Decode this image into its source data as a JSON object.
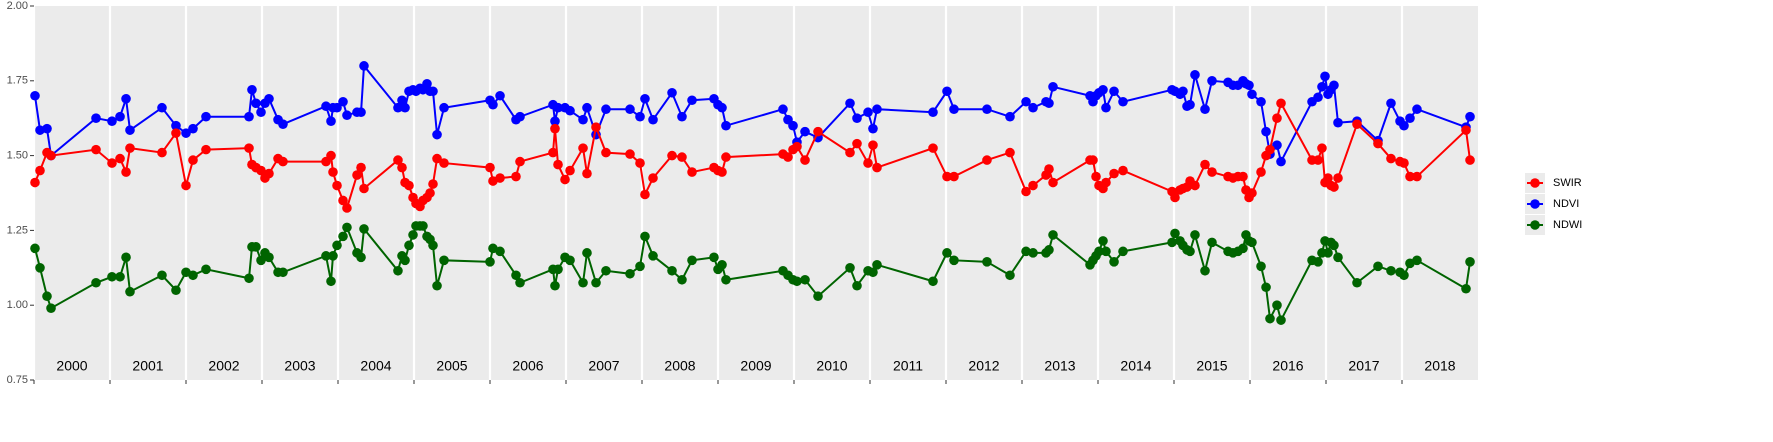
{
  "chart_data": {
    "type": "line",
    "x": [
      2000.013,
      2000.079,
      2000.171,
      2000.224,
      2000.816,
      2001.026,
      2001.132,
      2001.211,
      2001.263,
      2001.684,
      2001.868,
      2002.0,
      2002.092,
      2002.263,
      2002.829,
      2002.868,
      2002.921,
      2002.987,
      2003.039,
      2003.092,
      2003.211,
      2003.276,
      2003.842,
      2003.908,
      2003.934,
      2003.987,
      2004.066,
      2004.118,
      2004.25,
      2004.303,
      2004.342,
      2004.789,
      2004.842,
      2004.882,
      2004.934,
      2004.987,
      2005.026,
      2005.079,
      2005.118,
      2005.171,
      2005.211,
      2005.25,
      2005.303,
      2005.395,
      2006.0,
      2006.039,
      2006.132,
      2006.342,
      2006.395,
      2006.829,
      2006.855,
      2006.895,
      2006.987,
      2007.053,
      2007.224,
      2007.276,
      2007.395,
      2007.526,
      2007.842,
      2007.974,
      2008.039,
      2008.145,
      2008.395,
      2008.526,
      2008.658,
      2008.947,
      2009.0,
      2009.053,
      2009.105,
      2009.855,
      2009.921,
      2009.987,
      2010.039,
      2010.145,
      2010.316,
      2010.737,
      2010.829,
      2010.974,
      2011.039,
      2011.092,
      2011.829,
      2012.013,
      2012.105,
      2012.539,
      2012.842,
      2013.053,
      2013.145,
      2013.316,
      2013.355,
      2013.408,
      2013.895,
      2013.934,
      2013.974,
      2014.013,
      2014.066,
      2014.105,
      2014.211,
      2014.329,
      2014.974,
      2015.013,
      2015.079,
      2015.118,
      2015.171,
      2015.211,
      2015.276,
      2015.408,
      2015.5,
      2015.711,
      2015.776,
      2015.842,
      2015.908,
      2015.947,
      2015.987,
      2016.026,
      2016.145,
      2016.211,
      2016.263,
      2016.355,
      2016.408,
      2016.816,
      2016.895,
      2016.947,
      2016.987,
      2017.026,
      2017.066,
      2017.105,
      2017.158,
      2017.408,
      2017.684,
      2017.855,
      2017.974,
      2018.026,
      2018.105,
      2018.197,
      2018.842,
      2018.895
    ],
    "series": [
      {
        "name": "SWIR",
        "color": "#ff0000",
        "values": [
          1.41,
          1.45,
          1.51,
          1.5,
          1.52,
          1.475,
          1.49,
          1.445,
          1.525,
          1.51,
          1.575,
          1.4,
          1.485,
          1.52,
          1.525,
          1.47,
          1.46,
          1.45,
          1.425,
          1.44,
          1.49,
          1.48,
          1.48,
          1.5,
          1.445,
          1.4,
          1.35,
          1.325,
          1.435,
          1.46,
          1.39,
          1.485,
          1.46,
          1.41,
          1.4,
          1.36,
          1.34,
          1.33,
          1.35,
          1.36,
          1.375,
          1.405,
          1.49,
          1.475,
          1.46,
          1.415,
          1.425,
          1.43,
          1.48,
          1.51,
          1.59,
          1.47,
          1.42,
          1.45,
          1.525,
          1.44,
          1.595,
          1.51,
          1.505,
          1.475,
          1.37,
          1.425,
          1.5,
          1.495,
          1.445,
          1.46,
          1.45,
          1.445,
          1.495,
          1.505,
          1.495,
          1.52,
          1.53,
          1.485,
          1.58,
          1.51,
          1.54,
          1.475,
          1.535,
          1.46,
          1.525,
          1.43,
          1.43,
          1.485,
          1.51,
          1.38,
          1.4,
          1.435,
          1.455,
          1.41,
          1.485,
          1.485,
          1.43,
          1.4,
          1.39,
          1.41,
          1.44,
          1.45,
          1.38,
          1.36,
          1.385,
          1.39,
          1.395,
          1.415,
          1.4,
          1.47,
          1.445,
          1.43,
          1.425,
          1.43,
          1.43,
          1.385,
          1.36,
          1.375,
          1.445,
          1.5,
          1.52,
          1.625,
          1.675,
          1.485,
          1.485,
          1.525,
          1.41,
          1.425,
          1.4,
          1.395,
          1.425,
          1.605,
          1.54,
          1.49,
          1.48,
          1.475,
          1.43,
          1.43,
          1.585,
          1.485
        ]
      },
      {
        "name": "NDVI",
        "color": "#0000ff",
        "values": [
          1.7,
          1.585,
          1.59,
          1.5,
          1.625,
          1.615,
          1.63,
          1.69,
          1.585,
          1.66,
          1.6,
          1.575,
          1.59,
          1.63,
          1.63,
          1.72,
          1.675,
          1.645,
          1.675,
          1.69,
          1.62,
          1.605,
          1.665,
          1.615,
          1.66,
          1.66,
          1.68,
          1.635,
          1.645,
          1.645,
          1.8,
          1.66,
          1.685,
          1.66,
          1.715,
          1.72,
          1.715,
          1.725,
          1.72,
          1.74,
          1.715,
          1.715,
          1.57,
          1.66,
          1.685,
          1.67,
          1.7,
          1.62,
          1.63,
          1.67,
          1.615,
          1.66,
          1.66,
          1.65,
          1.62,
          1.66,
          1.57,
          1.655,
          1.655,
          1.63,
          1.69,
          1.62,
          1.71,
          1.63,
          1.685,
          1.69,
          1.67,
          1.66,
          1.6,
          1.655,
          1.62,
          1.6,
          1.545,
          1.58,
          1.56,
          1.675,
          1.625,
          1.645,
          1.59,
          1.655,
          1.645,
          1.715,
          1.655,
          1.655,
          1.63,
          1.68,
          1.66,
          1.68,
          1.675,
          1.73,
          1.7,
          1.68,
          1.7,
          1.71,
          1.72,
          1.66,
          1.715,
          1.68,
          1.72,
          1.715,
          1.705,
          1.715,
          1.665,
          1.67,
          1.77,
          1.655,
          1.75,
          1.745,
          1.735,
          1.735,
          1.75,
          1.74,
          1.735,
          1.705,
          1.68,
          1.58,
          1.505,
          1.535,
          1.48,
          1.68,
          1.695,
          1.73,
          1.765,
          1.705,
          1.72,
          1.735,
          1.61,
          1.615,
          1.55,
          1.675,
          1.615,
          1.6,
          1.625,
          1.655,
          1.595,
          1.63
        ]
      },
      {
        "name": "NDWI",
        "color": "#006400",
        "values": [
          1.19,
          1.125,
          1.03,
          0.99,
          1.075,
          1.095,
          1.095,
          1.16,
          1.045,
          1.1,
          1.05,
          1.11,
          1.1,
          1.12,
          1.09,
          1.195,
          1.195,
          1.15,
          1.175,
          1.16,
          1.11,
          1.11,
          1.165,
          1.08,
          1.165,
          1.2,
          1.23,
          1.26,
          1.175,
          1.16,
          1.255,
          1.115,
          1.165,
          1.15,
          1.2,
          1.235,
          1.265,
          1.265,
          1.265,
          1.23,
          1.22,
          1.2,
          1.065,
          1.15,
          1.145,
          1.19,
          1.18,
          1.1,
          1.075,
          1.12,
          1.065,
          1.12,
          1.16,
          1.15,
          1.075,
          1.175,
          1.075,
          1.115,
          1.105,
          1.13,
          1.23,
          1.165,
          1.115,
          1.085,
          1.15,
          1.16,
          1.12,
          1.135,
          1.085,
          1.115,
          1.1,
          1.085,
          1.08,
          1.085,
          1.03,
          1.125,
          1.065,
          1.115,
          1.11,
          1.135,
          1.08,
          1.175,
          1.15,
          1.145,
          1.1,
          1.18,
          1.175,
          1.175,
          1.185,
          1.235,
          1.135,
          1.15,
          1.165,
          1.18,
          1.215,
          1.18,
          1.145,
          1.18,
          1.21,
          1.24,
          1.215,
          1.2,
          1.185,
          1.18,
          1.235,
          1.115,
          1.21,
          1.18,
          1.175,
          1.18,
          1.19,
          1.235,
          1.215,
          1.21,
          1.13,
          1.06,
          0.955,
          1.0,
          0.95,
          1.15,
          1.145,
          1.175,
          1.215,
          1.175,
          1.21,
          1.2,
          1.16,
          1.075,
          1.13,
          1.115,
          1.11,
          1.1,
          1.14,
          1.15,
          1.055,
          1.145
        ]
      }
    ],
    "xlim": [
      2000,
      2019
    ],
    "xgrid": [
      2000,
      2001,
      2002,
      2003,
      2004,
      2005,
      2006,
      2007,
      2008,
      2009,
      2010,
      2011,
      2012,
      2013,
      2014,
      2015,
      2016,
      2017,
      2018
    ],
    "xticks": [
      {
        "value": 2000.5,
        "label": "2000"
      },
      {
        "value": 2001.5,
        "label": "2001"
      },
      {
        "value": 2002.5,
        "label": "2002"
      },
      {
        "value": 2003.5,
        "label": "2003"
      },
      {
        "value": 2004.5,
        "label": "2004"
      },
      {
        "value": 2005.5,
        "label": "2005"
      },
      {
        "value": 2006.5,
        "label": "2006"
      },
      {
        "value": 2007.5,
        "label": "2007"
      },
      {
        "value": 2008.5,
        "label": "2008"
      },
      {
        "value": 2009.5,
        "label": "2009"
      },
      {
        "value": 2010.5,
        "label": "2010"
      },
      {
        "value": 2011.5,
        "label": "2011"
      },
      {
        "value": 2012.5,
        "label": "2012"
      },
      {
        "value": 2013.5,
        "label": "2013"
      },
      {
        "value": 2014.5,
        "label": "2014"
      },
      {
        "value": 2015.5,
        "label": "2015"
      },
      {
        "value": 2016.5,
        "label": "2016"
      },
      {
        "value": 2017.5,
        "label": "2017"
      },
      {
        "value": 2018.5,
        "label": "2018"
      }
    ],
    "ylim": [
      0.75,
      2.0
    ],
    "yticks": [
      {
        "value": 0.75,
        "label": "0.75"
      },
      {
        "value": 1.0,
        "label": "1.00"
      },
      {
        "value": 1.25,
        "label": "1.25"
      },
      {
        "value": 1.5,
        "label": "1.50"
      },
      {
        "value": 1.75,
        "label": "1.75"
      },
      {
        "value": 2.0,
        "label": "2.00"
      }
    ],
    "grid": "x",
    "legend": "right"
  }
}
